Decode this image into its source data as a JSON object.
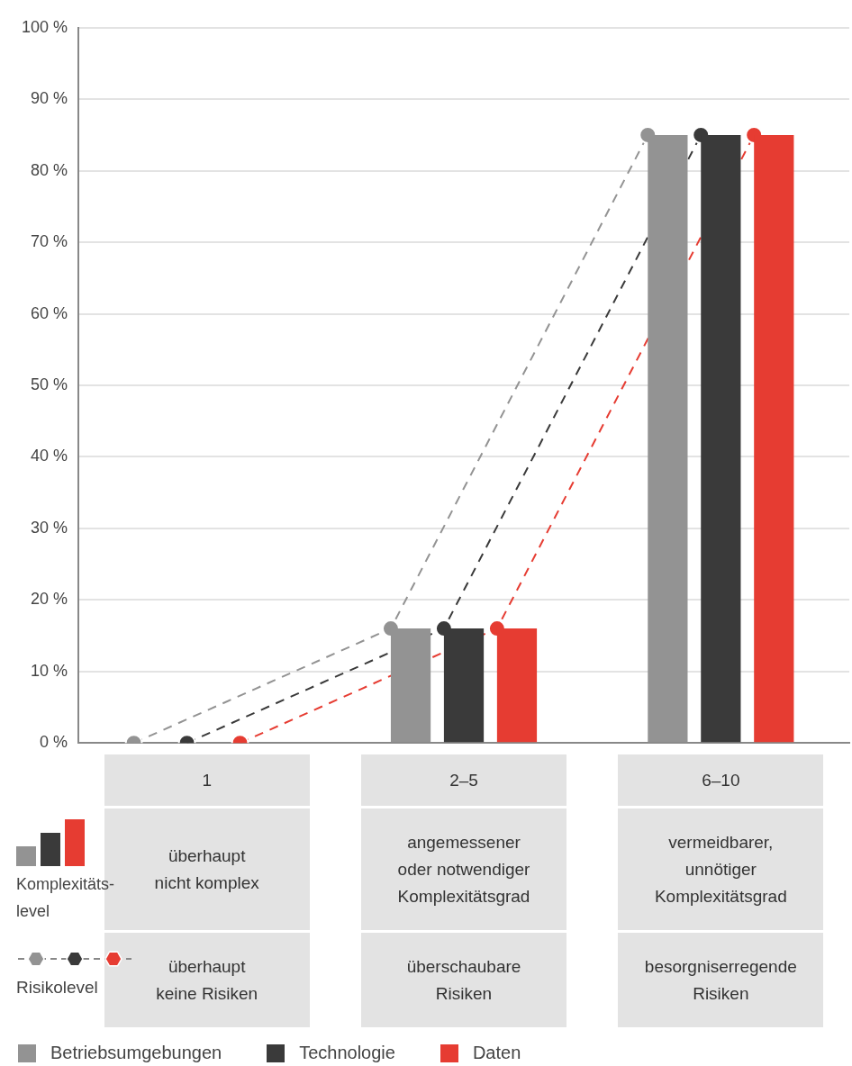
{
  "chart_data": {
    "type": "bar",
    "categories": [
      "1",
      "2–5",
      "6–10"
    ],
    "series": [
      {
        "name": "Betriebsumgebungen",
        "color": "#939393",
        "values": [
          null,
          16,
          85
        ]
      },
      {
        "name": "Technologie",
        "color": "#3a3a3a",
        "values": [
          null,
          16,
          85
        ]
      },
      {
        "name": "Daten",
        "color": "#e63c32",
        "values": [
          null,
          16,
          85
        ]
      },
      {
        "type": "line",
        "color": "#939393",
        "values": [
          0,
          16,
          85
        ]
      },
      {
        "type": "line",
        "color": "#3a3a3a",
        "values": [
          0,
          16,
          85
        ]
      },
      {
        "type": "line",
        "color": "#e63c32",
        "values": [
          0,
          16,
          85
        ]
      }
    ],
    "ylim": [
      0,
      100
    ],
    "yticks": [
      {
        "value": 0,
        "label": "0 %"
      },
      {
        "value": 10,
        "label": "10 %"
      },
      {
        "value": 20,
        "label": "20 %"
      },
      {
        "value": 30,
        "label": "30 %"
      },
      {
        "value": 40,
        "label": "40 %"
      },
      {
        "value": 50,
        "label": "50 %"
      },
      {
        "value": 60,
        "label": "60 %"
      },
      {
        "value": 70,
        "label": "70 %"
      },
      {
        "value": 80,
        "label": "80 %"
      },
      {
        "value": 90,
        "label": "90 %"
      },
      {
        "value": 100,
        "label": "100 %"
      }
    ],
    "grid": "y",
    "tick_labels": "y",
    "marker": "circle",
    "line_style": "dashed",
    "legend": "bottom left",
    "annotations": [
      "Komplexitäts-level",
      "Risikolevel",
      "überhaupt\nnicht komplex",
      "angemessener\noder notwendiger\nKomplexitätsgrad",
      "vermeidbarer,\nunnötiger\nKomplexitätsgrad",
      "überhaupt\nkeine Risiken",
      "überschaubare\nRisiken",
      "besorgniserregende\nRisiken"
    ]
  }
}
